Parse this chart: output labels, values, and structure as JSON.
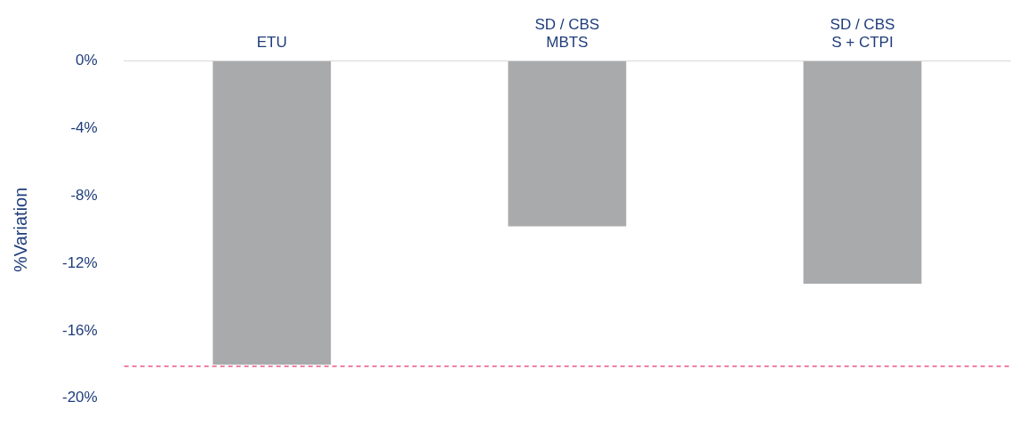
{
  "chart_data": {
    "type": "bar",
    "ylabel": "%Variation",
    "categories": [
      "ETU",
      "SD / CBS\nMBTS",
      "SD / CBS\nS + CTPI"
    ],
    "values": [
      -18,
      -9.8,
      -13.2
    ],
    "color": "#a9aaac",
    "ylim": [
      -20,
      0
    ],
    "yticks": [
      {
        "value": 0,
        "label": "0%"
      },
      {
        "value": -4,
        "label": "-4%"
      },
      {
        "value": -8,
        "label": "-8%"
      },
      {
        "value": -12,
        "label": "-12%"
      },
      {
        "value": -16,
        "label": "-16%"
      },
      {
        "value": -20,
        "label": "-20%"
      }
    ],
    "ref_lines": [
      {
        "axis": "y",
        "value": -18.1,
        "color": "#e8336c",
        "line_style": "dashed"
      }
    ],
    "grid": false,
    "legend": false
  }
}
